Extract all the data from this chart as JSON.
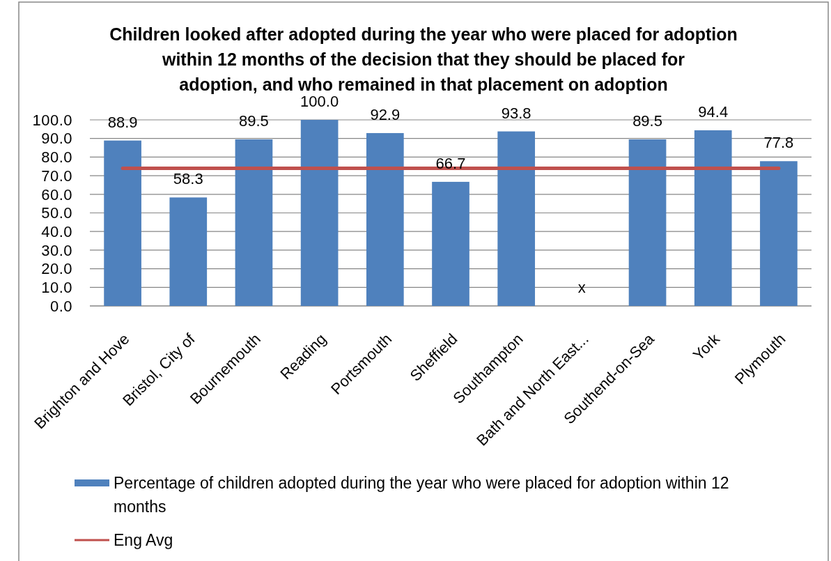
{
  "chart_data": {
    "type": "bar",
    "title": "Children looked after adopted during the year who were placed for adoption\nwithin 12 months of the decision that they should be placed for\nadoption, and who remained in that placement on adoption",
    "categories": [
      "Brighton and Hove",
      "Bristol, City of",
      "Bournemouth",
      "Reading",
      "Portsmouth",
      "Sheffield",
      "Southampton",
      "Bath and North East...",
      "Southend-on-Sea",
      "York",
      "Plymouth"
    ],
    "series": [
      {
        "name": "Percentage of children adopted during the year who were placed for adoption within 12 months",
        "color": "#4f81bd",
        "values": [
          88.9,
          58.3,
          89.5,
          100.0,
          92.9,
          66.7,
          93.8,
          null,
          89.5,
          94.4,
          77.8
        ],
        "value_labels": [
          "88.9",
          "58.3",
          "89.5",
          "100.0",
          "92.9",
          "66.7",
          "93.8",
          "x",
          "89.5",
          "94.4",
          "77.8"
        ]
      },
      {
        "name": "Eng Avg",
        "type": "line",
        "color": "#c0504d",
        "values": [
          74,
          74,
          74,
          74,
          74,
          74,
          74,
          74,
          74,
          74,
          74
        ]
      }
    ],
    "ylim": [
      0,
      100
    ],
    "yticks": [
      {
        "value": 0,
        "label": "0.0"
      },
      {
        "value": 10,
        "label": "10.0"
      },
      {
        "value": 20,
        "label": "20.0"
      },
      {
        "value": 30,
        "label": "30.0"
      },
      {
        "value": 40,
        "label": "40.0"
      },
      {
        "value": 50,
        "label": "50.0"
      },
      {
        "value": 60,
        "label": "60.0"
      },
      {
        "value": 70,
        "label": "70.0"
      },
      {
        "value": 80,
        "label": "80.0"
      },
      {
        "value": 90,
        "label": "90.0"
      },
      {
        "value": 100,
        "label": "100.0"
      }
    ],
    "grid": "y",
    "legend": "bottom"
  }
}
